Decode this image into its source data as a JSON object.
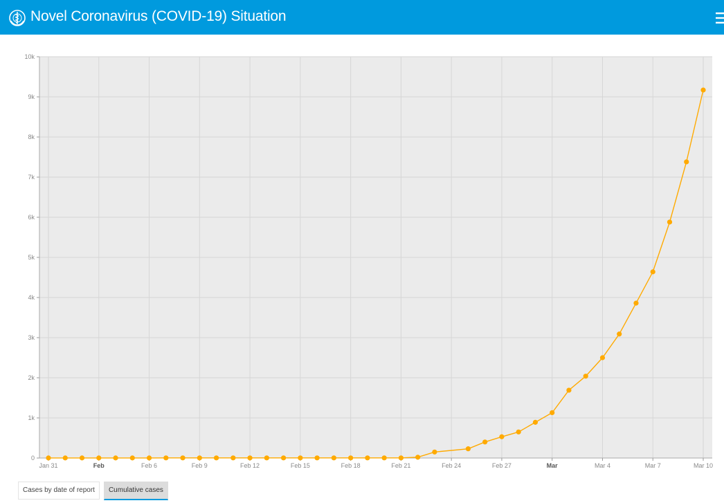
{
  "header": {
    "title": "Novel Coronavirus (COVID-19) Situation",
    "logo_icon": "who-emblem-icon",
    "menu_icon": "hamburger-menu-icon",
    "background_color": "#009ADE"
  },
  "tabs": [
    {
      "label": "Cases by date of report",
      "active": false
    },
    {
      "label": "Cumulative cases",
      "active": true
    }
  ],
  "colors": {
    "plot_background": "#ebebeb",
    "series": "#FFAA00",
    "grid": "#d6d6d6"
  },
  "chart_data": {
    "type": "line",
    "title": "",
    "xlabel": "",
    "ylabel": "",
    "ylim": [
      0,
      10000
    ],
    "y_ticks": [
      0,
      1000,
      2000,
      3000,
      4000,
      5000,
      6000,
      7000,
      8000,
      9000,
      10000
    ],
    "y_tick_labels": [
      "0",
      "1k",
      "2k",
      "3k",
      "4k",
      "5k",
      "6k",
      "7k",
      "8k",
      "9k",
      "10k"
    ],
    "x_ticks": [
      {
        "date": "2020-01-31",
        "label": "Jan 31",
        "bold": false
      },
      {
        "date": "2020-02-03",
        "label": "Feb",
        "bold": true
      },
      {
        "date": "2020-02-06",
        "label": "Feb 6",
        "bold": false
      },
      {
        "date": "2020-02-09",
        "label": "Feb 9",
        "bold": false
      },
      {
        "date": "2020-02-12",
        "label": "Feb 12",
        "bold": false
      },
      {
        "date": "2020-02-15",
        "label": "Feb 15",
        "bold": false
      },
      {
        "date": "2020-02-18",
        "label": "Feb 18",
        "bold": false
      },
      {
        "date": "2020-02-21",
        "label": "Feb 21",
        "bold": false
      },
      {
        "date": "2020-02-24",
        "label": "Feb 24",
        "bold": false
      },
      {
        "date": "2020-02-27",
        "label": "Feb 27",
        "bold": false
      },
      {
        "date": "2020-03-01",
        "label": "Mar",
        "bold": true
      },
      {
        "date": "2020-03-04",
        "label": "Mar 4",
        "bold": false
      },
      {
        "date": "2020-03-07",
        "label": "Mar 7",
        "bold": false
      },
      {
        "date": "2020-03-10",
        "label": "Mar 10",
        "bold": false
      }
    ],
    "x_range": [
      "2020-01-31",
      "2020-03-10"
    ],
    "grid": true,
    "series": [
      {
        "points": [
          {
            "date": "2020-01-31",
            "value": 2
          },
          {
            "date": "2020-02-01",
            "value": 2
          },
          {
            "date": "2020-02-02",
            "value": 2
          },
          {
            "date": "2020-02-03",
            "value": 2
          },
          {
            "date": "2020-02-04",
            "value": 2
          },
          {
            "date": "2020-02-05",
            "value": 2
          },
          {
            "date": "2020-02-06",
            "value": 2
          },
          {
            "date": "2020-02-07",
            "value": 3
          },
          {
            "date": "2020-02-08",
            "value": 3
          },
          {
            "date": "2020-02-09",
            "value": 3
          },
          {
            "date": "2020-02-10",
            "value": 3
          },
          {
            "date": "2020-02-11",
            "value": 3
          },
          {
            "date": "2020-02-12",
            "value": 3
          },
          {
            "date": "2020-02-13",
            "value": 3
          },
          {
            "date": "2020-02-14",
            "value": 3
          },
          {
            "date": "2020-02-15",
            "value": 3
          },
          {
            "date": "2020-02-16",
            "value": 3
          },
          {
            "date": "2020-02-17",
            "value": 3
          },
          {
            "date": "2020-02-18",
            "value": 3
          },
          {
            "date": "2020-02-19",
            "value": 3
          },
          {
            "date": "2020-02-20",
            "value": 3
          },
          {
            "date": "2020-02-21",
            "value": 3
          },
          {
            "date": "2020-02-22",
            "value": 20
          },
          {
            "date": "2020-02-23",
            "value": 150
          },
          {
            "date": "2020-02-25",
            "value": 230
          },
          {
            "date": "2020-02-26",
            "value": 400
          },
          {
            "date": "2020-02-27",
            "value": 530
          },
          {
            "date": "2020-02-28",
            "value": 650
          },
          {
            "date": "2020-02-29",
            "value": 890
          },
          {
            "date": "2020-03-01",
            "value": 1130
          },
          {
            "date": "2020-03-02",
            "value": 1690
          },
          {
            "date": "2020-03-03",
            "value": 2040
          },
          {
            "date": "2020-03-04",
            "value": 2500
          },
          {
            "date": "2020-03-05",
            "value": 3090
          },
          {
            "date": "2020-03-06",
            "value": 3860
          },
          {
            "date": "2020-03-07",
            "value": 4640
          },
          {
            "date": "2020-03-08",
            "value": 5880
          },
          {
            "date": "2020-03-09",
            "value": 7380
          },
          {
            "date": "2020-03-10",
            "value": 9170
          }
        ]
      }
    ]
  }
}
